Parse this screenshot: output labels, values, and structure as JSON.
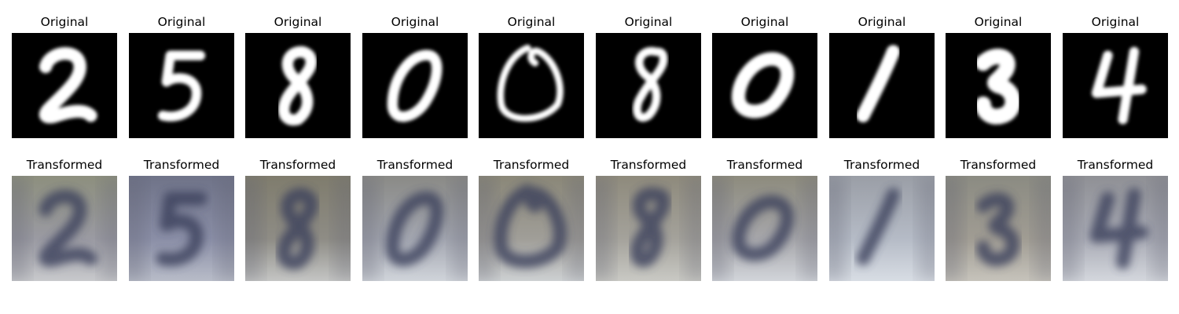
{
  "figure": {
    "original_label": "Original",
    "transformed_label": "Transformed",
    "pairs": [
      {
        "digit": "2"
      },
      {
        "digit": "5"
      },
      {
        "digit": "8"
      },
      {
        "digit": "0"
      },
      {
        "digit": "0"
      },
      {
        "digit": "8"
      },
      {
        "digit": "0"
      },
      {
        "digit": "1"
      },
      {
        "digit": "3"
      },
      {
        "digit": "4"
      }
    ]
  },
  "colors": {
    "original_background": "#000000",
    "original_stroke": "#ffffff",
    "transformed_background": "#9a9a9e",
    "transformed_stroke": "#3a3f5c"
  }
}
